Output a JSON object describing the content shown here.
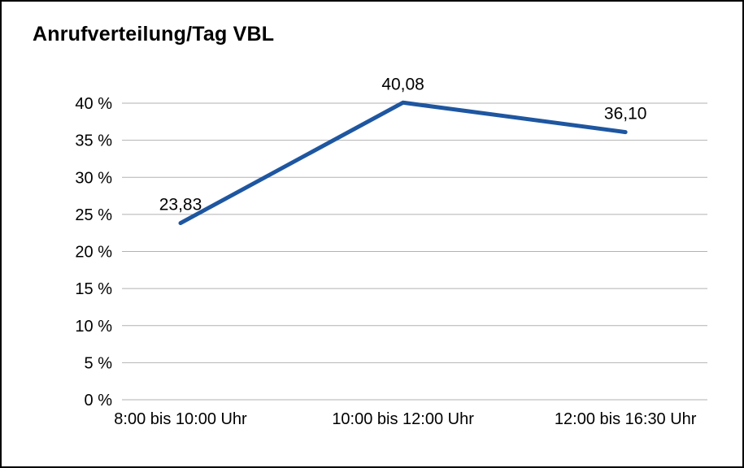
{
  "chart_data": {
    "type": "line",
    "title": "Anrufverteilung/Tag VBL",
    "categories": [
      "8:00 bis 10:00 Uhr",
      "10:00 bis 12:00 Uhr",
      "12:00 bis 16:30 Uhr"
    ],
    "series": [
      {
        "name": "Anrufverteilung",
        "values": [
          23.83,
          40.08,
          36.1
        ],
        "value_labels": [
          "23,83",
          "40,08",
          "36,10"
        ]
      }
    ],
    "ylabel": "",
    "xlabel": "",
    "ylim": [
      0,
      40
    ],
    "ytick_step": 5,
    "ytick_suffix": " %",
    "grid": "horizontal",
    "legend_position": "none",
    "colors": {
      "line": "#1E56A0",
      "grid": "#b2b2b2",
      "text": "#000000",
      "background": "#ffffff",
      "border": "#000000"
    }
  }
}
